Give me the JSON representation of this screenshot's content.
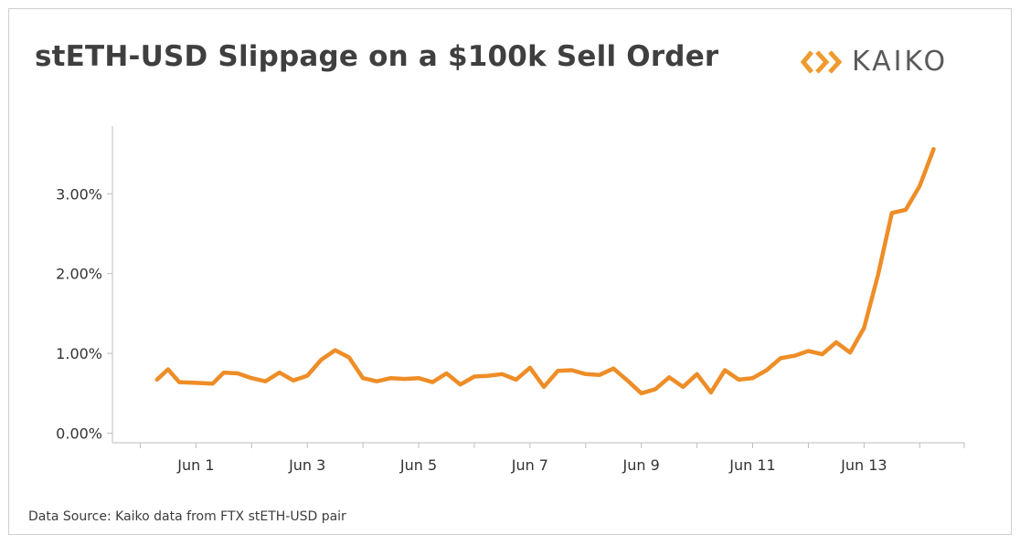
{
  "title": "stETH-USD Slippage on a $100k Sell Order",
  "logo": {
    "text": "KAIKO",
    "icon": "kaiko-diamond-logo",
    "color": "#ef9a2e"
  },
  "source": "Data Source: Kaiko data from FTX stETH-USD pair",
  "colors": {
    "line": "#ee8d27",
    "axis": "#bdbdbd",
    "text": "#333333"
  },
  "chart_data": {
    "type": "line",
    "title": "stETH-USD Slippage on a $100k Sell Order",
    "xlabel": "",
    "ylabel": "",
    "grid": false,
    "x_ticks": [
      {
        "label": "Jun 1",
        "day": 1
      },
      {
        "label": "Jun 3",
        "day": 3
      },
      {
        "label": "Jun 5",
        "day": 5
      },
      {
        "label": "Jun 7",
        "day": 7
      },
      {
        "label": "Jun 9",
        "day": 9
      },
      {
        "label": "Jun 11",
        "day": 11
      },
      {
        "label": "Jun 13",
        "day": 13
      }
    ],
    "y_ticks": [
      {
        "label": "0.00%",
        "value": 0
      },
      {
        "label": "1.00%",
        "value": 1
      },
      {
        "label": "2.00%",
        "value": 2
      },
      {
        "label": "3.00%",
        "value": 3
      }
    ],
    "xlim_day": [
      -0.5,
      14.8
    ],
    "ylim": [
      -0.12,
      3.85
    ],
    "y_unit": "%",
    "series": [
      {
        "points": [
          [
            0.3,
            0.67
          ],
          [
            0.5,
            0.8
          ],
          [
            0.7,
            0.64
          ],
          [
            1.0,
            0.63
          ],
          [
            1.3,
            0.62
          ],
          [
            1.5,
            0.76
          ],
          [
            1.75,
            0.75
          ],
          [
            2.0,
            0.69
          ],
          [
            2.25,
            0.65
          ],
          [
            2.5,
            0.76
          ],
          [
            2.75,
            0.66
          ],
          [
            3.0,
            0.72
          ],
          [
            3.25,
            0.92
          ],
          [
            3.5,
            1.04
          ],
          [
            3.75,
            0.95
          ],
          [
            4.0,
            0.69
          ],
          [
            4.25,
            0.65
          ],
          [
            4.5,
            0.69
          ],
          [
            4.75,
            0.68
          ],
          [
            5.0,
            0.69
          ],
          [
            5.25,
            0.64
          ],
          [
            5.5,
            0.75
          ],
          [
            5.75,
            0.61
          ],
          [
            6.0,
            0.71
          ],
          [
            6.25,
            0.72
          ],
          [
            6.5,
            0.74
          ],
          [
            6.75,
            0.67
          ],
          [
            7.0,
            0.82
          ],
          [
            7.25,
            0.58
          ],
          [
            7.5,
            0.78
          ],
          [
            7.75,
            0.79
          ],
          [
            8.0,
            0.74
          ],
          [
            8.25,
            0.73
          ],
          [
            8.5,
            0.81
          ],
          [
            8.75,
            0.66
          ],
          [
            9.0,
            0.5
          ],
          [
            9.25,
            0.55
          ],
          [
            9.5,
            0.7
          ],
          [
            9.75,
            0.58
          ],
          [
            10.0,
            0.74
          ],
          [
            10.25,
            0.51
          ],
          [
            10.5,
            0.79
          ],
          [
            10.75,
            0.67
          ],
          [
            11.0,
            0.69
          ],
          [
            11.25,
            0.79
          ],
          [
            11.5,
            0.94
          ],
          [
            11.75,
            0.97
          ],
          [
            12.0,
            1.03
          ],
          [
            12.25,
            0.99
          ],
          [
            12.5,
            1.14
          ],
          [
            12.75,
            1.01
          ],
          [
            13.0,
            1.32
          ],
          [
            13.25,
            1.98
          ],
          [
            13.5,
            2.76
          ],
          [
            13.75,
            2.8
          ],
          [
            14.0,
            3.1
          ],
          [
            14.25,
            3.56
          ]
        ]
      }
    ]
  }
}
